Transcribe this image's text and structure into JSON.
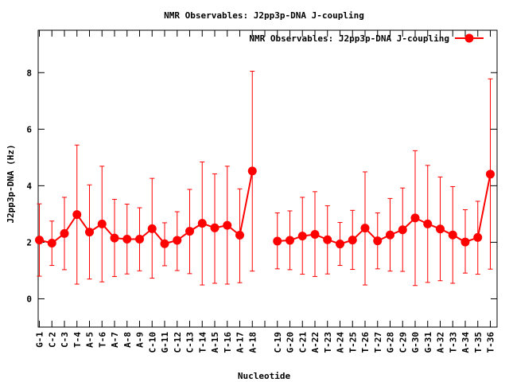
{
  "chart_data": {
    "type": "line",
    "title": "NMR Observables: J2pp3p-DNA J-coupling",
    "xlabel": "Nucleotide",
    "ylabel": "J2pp3p-DNA (Hz)",
    "ylim": [
      -1,
      9.5
    ],
    "yticks": [
      0,
      2,
      4,
      6,
      8
    ],
    "grid": false,
    "legend_position": "top-right",
    "color": "#ff0000",
    "series": [
      {
        "name": "NMR Observables: J2pp3p-DNA J-coupling",
        "points": [
          {
            "x": "G-1",
            "y": 2.08,
            "lo": 0.8,
            "hi": 3.36
          },
          {
            "x": "C-2",
            "y": 1.97,
            "lo": 1.18,
            "hi": 2.75
          },
          {
            "x": "C-3",
            "y": 2.31,
            "lo": 1.03,
            "hi": 3.59
          },
          {
            "x": "T-4",
            "y": 2.98,
            "lo": 0.52,
            "hi": 5.44
          },
          {
            "x": "A-5",
            "y": 2.36,
            "lo": 0.7,
            "hi": 4.03
          },
          {
            "x": "T-6",
            "y": 2.65,
            "lo": 0.6,
            "hi": 4.69
          },
          {
            "x": "A-7",
            "y": 2.15,
            "lo": 0.79,
            "hi": 3.52
          },
          {
            "x": "A-8",
            "y": 2.11,
            "lo": 0.88,
            "hi": 3.35
          },
          {
            "x": "A-9",
            "y": 2.11,
            "lo": 0.99,
            "hi": 3.22
          },
          {
            "x": "C-10",
            "y": 2.48,
            "lo": 0.73,
            "hi": 4.26
          },
          {
            "x": "G-11",
            "y": 1.95,
            "lo": 1.17,
            "hi": 2.69
          },
          {
            "x": "C-12",
            "y": 2.07,
            "lo": 1.0,
            "hi": 3.08
          },
          {
            "x": "C-13",
            "y": 2.39,
            "lo": 0.89,
            "hi": 3.87
          },
          {
            "x": "T-14",
            "y": 2.67,
            "lo": 0.49,
            "hi": 4.84
          },
          {
            "x": "A-15",
            "y": 2.51,
            "lo": 0.55,
            "hi": 4.42
          },
          {
            "x": "T-16",
            "y": 2.6,
            "lo": 0.52,
            "hi": 4.69
          },
          {
            "x": "A-17",
            "y": 2.25,
            "lo": 0.57,
            "hi": 3.89
          },
          {
            "x": "A-18",
            "y": 4.52,
            "lo": 0.98,
            "hi": 8.05
          },
          {
            "x": "",
            "y": null
          },
          {
            "x": "C-19",
            "y": 2.04,
            "lo": 1.06,
            "hi": 3.04
          },
          {
            "x": "G-20",
            "y": 2.07,
            "lo": 1.03,
            "hi": 3.11
          },
          {
            "x": "C-21",
            "y": 2.22,
            "lo": 0.87,
            "hi": 3.59
          },
          {
            "x": "A-22",
            "y": 2.28,
            "lo": 0.79,
            "hi": 3.79
          },
          {
            "x": "T-23",
            "y": 2.09,
            "lo": 0.88,
            "hi": 3.29
          },
          {
            "x": "A-24",
            "y": 1.94,
            "lo": 1.18,
            "hi": 2.7
          },
          {
            "x": "T-25",
            "y": 2.08,
            "lo": 1.04,
            "hi": 3.13
          },
          {
            "x": "T-26",
            "y": 2.5,
            "lo": 0.49,
            "hi": 4.49
          },
          {
            "x": "T-27",
            "y": 2.05,
            "lo": 1.06,
            "hi": 3.04
          },
          {
            "x": "G-28",
            "y": 2.26,
            "lo": 0.98,
            "hi": 3.55
          },
          {
            "x": "C-29",
            "y": 2.44,
            "lo": 0.97,
            "hi": 3.92
          },
          {
            "x": "G-30",
            "y": 2.86,
            "lo": 0.47,
            "hi": 5.24
          },
          {
            "x": "G-31",
            "y": 2.65,
            "lo": 0.58,
            "hi": 4.72
          },
          {
            "x": "A-32",
            "y": 2.47,
            "lo": 0.64,
            "hi": 4.31
          },
          {
            "x": "T-33",
            "y": 2.26,
            "lo": 0.55,
            "hi": 3.97
          },
          {
            "x": "A-34",
            "y": 2.01,
            "lo": 0.91,
            "hi": 3.15
          },
          {
            "x": "T-35",
            "y": 2.17,
            "lo": 0.87,
            "hi": 3.45
          },
          {
            "x": "T-36",
            "y": 4.41,
            "lo": 1.05,
            "hi": 7.78
          }
        ]
      }
    ]
  }
}
